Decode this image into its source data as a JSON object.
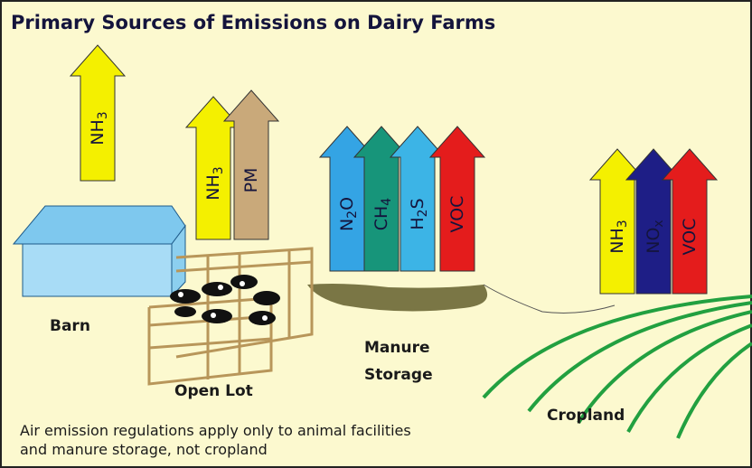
{
  "title": "Primary Sources of Emissions on Dairy Farms",
  "arrows": [
    {
      "parts": [
        {
          "text": "NH"
        },
        {
          "sub": "3"
        }
      ]
    },
    {
      "parts": [
        {
          "text": "NH"
        },
        {
          "sub": "3"
        }
      ]
    },
    {
      "parts": [
        {
          "text": "PM"
        }
      ]
    },
    {
      "parts": [
        {
          "text": "N"
        },
        {
          "sub": "2"
        },
        {
          "text": "O"
        }
      ]
    },
    {
      "parts": [
        {
          "text": "CH"
        },
        {
          "sub": "4"
        }
      ]
    },
    {
      "parts": [
        {
          "text": "H"
        },
        {
          "sub": "2"
        },
        {
          "text": "S"
        }
      ]
    },
    {
      "parts": [
        {
          "text": "VOC"
        }
      ]
    },
    {
      "parts": [
        {
          "text": "NH"
        },
        {
          "sub": "3"
        }
      ]
    },
    {
      "parts": [
        {
          "text": "NO"
        },
        {
          "sub": "x"
        }
      ]
    },
    {
      "parts": [
        {
          "text": "VOC"
        }
      ]
    }
  ],
  "labels": {
    "barn": "Barn",
    "open_lot": "Open Lot",
    "manure_storage": [
      "Manure",
      "Storage"
    ],
    "cropland": "Cropland"
  },
  "note": [
    "Air emission regulations apply only to animal facilities",
    "and manure storage, not cropland"
  ]
}
